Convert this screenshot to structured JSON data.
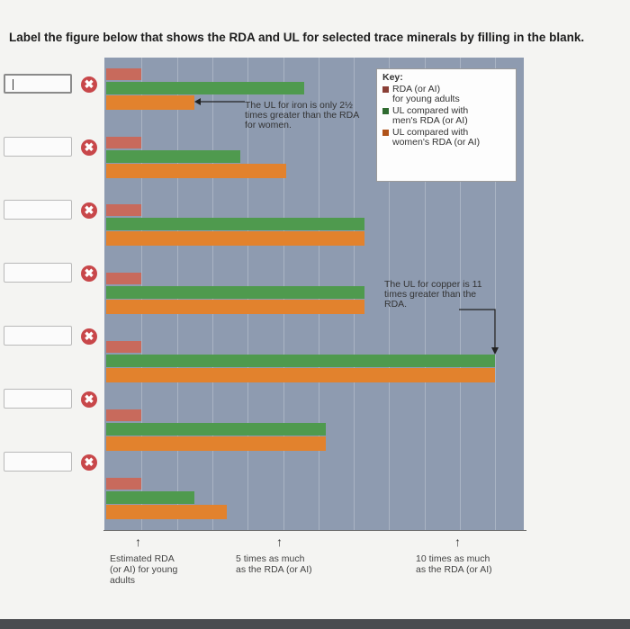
{
  "instruction": "Label the figure below that shows the RDA and UL for selected trace minerals by filling in the blank.",
  "blanks": [
    {
      "value": "",
      "status": "incorrect"
    },
    {
      "value": "",
      "status": "incorrect"
    },
    {
      "value": "",
      "status": "incorrect"
    },
    {
      "value": "",
      "status": "incorrect"
    },
    {
      "value": "",
      "status": "incorrect"
    },
    {
      "value": "",
      "status": "incorrect"
    },
    {
      "value": "",
      "status": "incorrect"
    }
  ],
  "incorrect_mark": "✖",
  "chart_data": {
    "type": "bar",
    "orientation": "horizontal",
    "x_unit": "times the RDA (or AI)",
    "xlim": [
      0,
      11.5
    ],
    "series": [
      {
        "name": "RDA (or AI) for young adults",
        "color": "#c86a5c",
        "values": [
          1,
          1,
          1,
          1,
          1,
          1,
          1
        ]
      },
      {
        "name": "UL compared with men's RDA (or AI)",
        "color": "#4f9a4e",
        "values": [
          5.6,
          3.8,
          7.3,
          7.3,
          11,
          6.2,
          2.5
        ]
      },
      {
        "name": "UL compared with women's RDA (or AI)",
        "color": "#e2822d",
        "values": [
          2.5,
          5.1,
          7.3,
          7.3,
          11,
          6.2,
          3.4
        ]
      }
    ],
    "annotations": [
      "The UL for iron is only 2½ times greater than the RDA for women.",
      "The UL for copper is 11 times greater than the RDA."
    ],
    "key": {
      "title": "Key:",
      "items": [
        {
          "label_line1": "RDA (or AI)",
          "label_line2": "for young adults",
          "color": "#8a3f36"
        },
        {
          "label_line1": "UL compared with",
          "label_line2": "men's RDA (or AI)",
          "color": "#2f6b30"
        },
        {
          "label_line1": "UL compared with",
          "label_line2": "women's RDA (or AI)",
          "color": "#b0531a"
        }
      ]
    },
    "axis_labels": [
      {
        "line1": "Estimated RDA",
        "line2": "(or AI) for young",
        "line3": "adults"
      },
      {
        "line1": "5 times as much",
        "line2": "as the RDA (or AI)",
        "line3": ""
      },
      {
        "line1": "10 times as much",
        "line2": "as the RDA (or AI)",
        "line3": ""
      }
    ]
  }
}
